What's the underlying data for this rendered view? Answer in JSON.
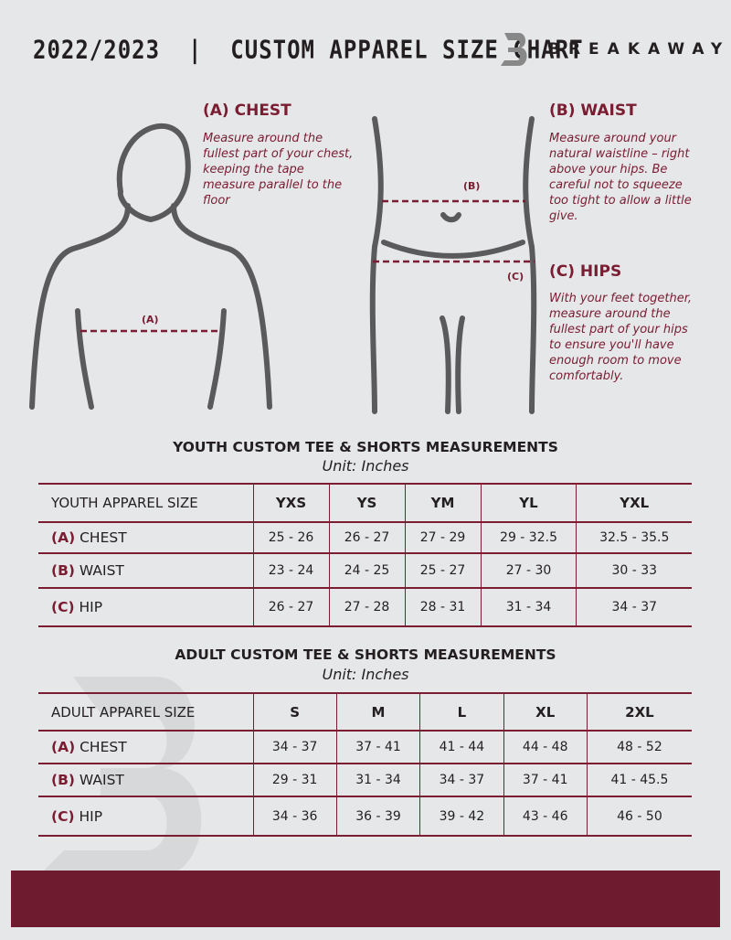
{
  "header": {
    "title": "2022/2023  |  CUSTOM APPAREL SIZE CHART",
    "brand": "BREAKAWAY"
  },
  "guide": {
    "chest": {
      "heading": "(A) CHEST",
      "text": "Measure around the fullest part of your chest, keeping the tape measure parallel to the floor",
      "marker": "(A)"
    },
    "waist": {
      "heading": "(B) WAIST",
      "text": "Measure around your natural waistline – right above your hips. Be careful not to squeeze too tight to allow a little give.",
      "marker": "(B)"
    },
    "hips": {
      "heading": "(C) HIPS",
      "text": "With your feet together, measure around the fullest part of your hips to ensure you'll have enough room to move comfortably.",
      "marker": "(C)"
    }
  },
  "youth": {
    "title": "YOUTH CUSTOM TEE & SHORTS MEASUREMENTS",
    "unit": "Unit: Inches",
    "label": "YOUTH APPAREL SIZE",
    "sizes": [
      "YXS",
      "YS",
      "YM",
      "YL",
      "YXL"
    ],
    "rows": [
      {
        "code": "(A)",
        "name": "CHEST",
        "values": [
          "25 - 26",
          "26 - 27",
          "27 - 29",
          "29 - 32.5",
          "32.5 - 35.5"
        ]
      },
      {
        "code": "(B)",
        "name": "WAIST",
        "values": [
          "23 - 24",
          "24 - 25",
          "25 - 27",
          "27 - 30",
          "30 - 33"
        ]
      },
      {
        "code": "(C)",
        "name": "HIP",
        "values": [
          "26 - 27",
          "27 - 28",
          "28 - 31",
          "31 - 34",
          "34 - 37"
        ]
      }
    ]
  },
  "adult": {
    "title": "ADULT CUSTOM TEE & SHORTS MEASUREMENTS",
    "unit": "Unit: Inches",
    "label": "ADULT APPAREL SIZE",
    "sizes": [
      "S",
      "M",
      "L",
      "XL",
      "2XL"
    ],
    "rows": [
      {
        "code": "(A)",
        "name": "CHEST",
        "values": [
          "34 - 37",
          "37 - 41",
          "41 - 44",
          "44 - 48",
          "48 - 52"
        ]
      },
      {
        "code": "(B)",
        "name": "WAIST",
        "values": [
          "29 - 31",
          "31 - 34",
          "34 - 37",
          "37 - 41",
          "41 - 45.5"
        ]
      },
      {
        "code": "(C)",
        "name": "HIP",
        "values": [
          "34 - 36",
          "36 - 39",
          "39 - 42",
          "43 - 46",
          "46 - 50"
        ]
      }
    ]
  },
  "colors": {
    "accent": "#7a1c32",
    "footer": "#6e1a2f",
    "background": "#e6e7e9"
  }
}
